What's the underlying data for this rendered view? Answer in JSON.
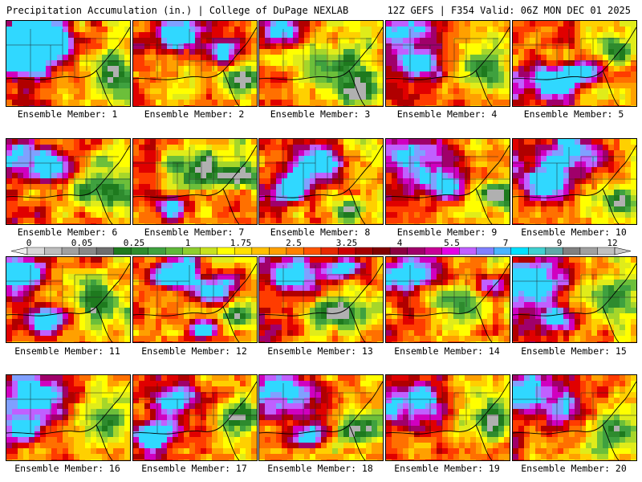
{
  "header": {
    "left": "Precipitation Accumulation (in.) | College of DuPage NEXLAB",
    "right": "12Z GEFS | F354 Valid: 06Z MON DEC 01 2025"
  },
  "members": [
    {
      "label": "Ensemble Member: 1",
      "hot": [
        [
          0.15,
          0.15,
          0.55
        ],
        [
          0.3,
          0.3,
          0.45
        ],
        [
          0.08,
          0.45,
          0.35
        ]
      ],
      "cool": [
        [
          0.8,
          0.6,
          0.4
        ]
      ]
    },
    {
      "label": "Ensemble Member: 2",
      "hot": [
        [
          0.35,
          0.1,
          0.4
        ],
        [
          0.7,
          0.3,
          0.3
        ]
      ],
      "cool": [
        [
          0.85,
          0.7,
          0.3
        ]
      ]
    },
    {
      "label": "Ensemble Member: 3",
      "hot": [
        [
          0.12,
          0.1,
          0.3
        ]
      ],
      "cool": [
        [
          0.6,
          0.5,
          0.5
        ],
        [
          0.75,
          0.8,
          0.35
        ]
      ]
    },
    {
      "label": "Ensemble Member: 4",
      "hot": [
        [
          0.15,
          0.12,
          0.45
        ],
        [
          0.3,
          0.5,
          0.35
        ]
      ],
      "cool": [
        [
          0.75,
          0.6,
          0.4
        ]
      ]
    },
    {
      "label": "Ensemble Member: 5",
      "hot": [
        [
          0.3,
          0.7,
          0.4
        ],
        [
          0.55,
          0.55,
          0.3
        ]
      ],
      "cool": [
        [
          0.8,
          0.3,
          0.35
        ]
      ]
    },
    {
      "label": "Ensemble Member: 6",
      "hot": [
        [
          0.1,
          0.2,
          0.5
        ],
        [
          0.4,
          0.3,
          0.3
        ]
      ],
      "cool": [
        [
          0.75,
          0.6,
          0.45
        ]
      ]
    },
    {
      "label": "Ensemble Member: 7",
      "hot": [
        [
          0.3,
          0.75,
          0.25
        ]
      ],
      "cool": [
        [
          0.5,
          0.3,
          0.55
        ],
        [
          0.85,
          0.4,
          0.3
        ]
      ]
    },
    {
      "label": "Ensemble Member: 8",
      "hot": [
        [
          0.45,
          0.3,
          0.45
        ],
        [
          0.25,
          0.55,
          0.3
        ]
      ],
      "cool": [
        [
          0.7,
          0.8,
          0.3
        ]
      ]
    },
    {
      "label": "Ensemble Member: 9",
      "hot": [
        [
          0.2,
          0.2,
          0.5
        ],
        [
          0.45,
          0.5,
          0.35
        ]
      ],
      "cool": [
        [
          0.85,
          0.6,
          0.35
        ]
      ]
    },
    {
      "label": "Ensemble Member: 10",
      "hot": [
        [
          0.45,
          0.15,
          0.55
        ],
        [
          0.25,
          0.5,
          0.35
        ]
      ],
      "cool": [
        [
          0.85,
          0.7,
          0.3
        ]
      ]
    },
    {
      "label": "Ensemble Member: 11",
      "hot": [
        [
          0.1,
          0.15,
          0.35
        ],
        [
          0.3,
          0.7,
          0.35
        ]
      ],
      "cool": [
        [
          0.7,
          0.5,
          0.45
        ]
      ]
    },
    {
      "label": "Ensemble Member: 12",
      "hot": [
        [
          0.35,
          0.15,
          0.4
        ],
        [
          0.65,
          0.35,
          0.35
        ],
        [
          0.55,
          0.8,
          0.25
        ]
      ],
      "cool": [
        [
          0.85,
          0.65,
          0.3
        ]
      ]
    },
    {
      "label": "Ensemble Member: 13",
      "hot": [
        [
          0.3,
          0.15,
          0.5
        ],
        [
          0.65,
          0.1,
          0.3
        ]
      ],
      "cool": [
        [
          0.6,
          0.6,
          0.45
        ]
      ]
    },
    {
      "label": "Ensemble Member: 14",
      "hot": [
        [
          0.15,
          0.15,
          0.45
        ],
        [
          0.85,
          0.3,
          0.3
        ]
      ],
      "cool": [
        [
          0.55,
          0.55,
          0.5
        ]
      ]
    },
    {
      "label": "Ensemble Member: 15",
      "hot": [
        [
          0.15,
          0.2,
          0.5
        ],
        [
          0.35,
          0.7,
          0.35
        ]
      ],
      "cool": [
        [
          0.8,
          0.4,
          0.4
        ]
      ]
    },
    {
      "label": "Ensemble Member: 16",
      "hot": [
        [
          0.2,
          0.2,
          0.55
        ],
        [
          0.15,
          0.6,
          0.3
        ]
      ],
      "cool": [
        [
          0.8,
          0.6,
          0.4
        ]
      ]
    },
    {
      "label": "Ensemble Member: 17",
      "hot": [
        [
          0.3,
          0.3,
          0.45
        ],
        [
          0.15,
          0.7,
          0.3
        ]
      ],
      "cool": [
        [
          0.8,
          0.5,
          0.4
        ]
      ]
    },
    {
      "label": "Ensemble Member: 18",
      "hot": [
        [
          0.2,
          0.15,
          0.5
        ],
        [
          0.35,
          0.7,
          0.3
        ]
      ],
      "cool": [
        [
          0.8,
          0.6,
          0.4
        ]
      ]
    },
    {
      "label": "Ensemble Member: 19",
      "hot": [
        [
          0.2,
          0.3,
          0.55
        ]
      ],
      "cool": [
        [
          0.8,
          0.5,
          0.4
        ]
      ]
    },
    {
      "label": "Ensemble Member: 20",
      "hot": [
        [
          0.1,
          0.15,
          0.55
        ],
        [
          0.4,
          0.4,
          0.3
        ]
      ],
      "cool": [
        [
          0.8,
          0.6,
          0.4
        ]
      ]
    }
  ],
  "colorbar": {
    "ticks": [
      "0",
      "0.05",
      "0.25",
      "1",
      "1.75",
      "2.5",
      "3.25",
      "4",
      "5.5",
      "7",
      "9",
      "12"
    ],
    "colors": [
      "#d8d8d8",
      "#bdbdbd",
      "#a0a0a0",
      "#888888",
      "#6e6e6e",
      "#1e7a1e",
      "#2e8b2e",
      "#3fa13f",
      "#5fb83a",
      "#8fce2e",
      "#c8e21e",
      "#ffff00",
      "#ffe000",
      "#ffc000",
      "#ffa000",
      "#ff8000",
      "#ff5500",
      "#e62a00",
      "#cc0000",
      "#a30000",
      "#800000",
      "#8b0040",
      "#a0006a",
      "#c80096",
      "#e600e6",
      "#c060ff",
      "#8080ff",
      "#4ab4ff",
      "#00e0ff",
      "#40d0d0",
      "#60a8a8",
      "#808080",
      "#a0a0a0",
      "#c0c0c0"
    ]
  }
}
